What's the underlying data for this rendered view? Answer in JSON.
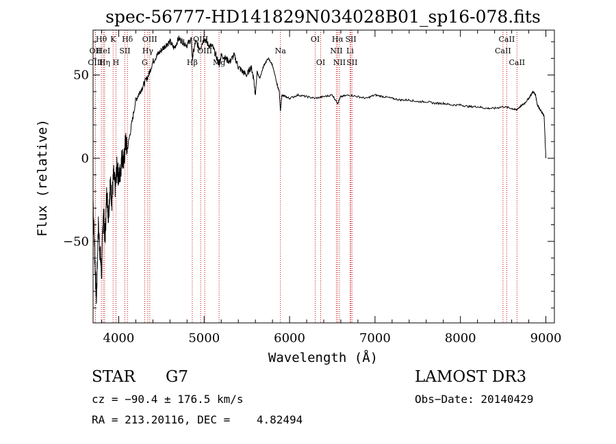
{
  "chart_data": {
    "type": "line",
    "title": "spec-56777-HD141829N034028B01_sp16-078.fits",
    "xlabel": "Wavelength (Å)",
    "ylabel": "Flux (relative)",
    "xlim": [
      3700,
      9100
    ],
    "ylim": [
      -99,
      77
    ],
    "xticks": [
      4000,
      5000,
      6000,
      7000,
      8000,
      9000
    ],
    "yticks": [
      -50,
      0,
      50
    ],
    "spectrum": {
      "name": "flux",
      "x": [
        3700,
        3720,
        3740,
        3760,
        3780,
        3800,
        3820,
        3840,
        3860,
        3880,
        3900,
        3920,
        3940,
        3960,
        3980,
        4000,
        4020,
        4040,
        4060,
        4080,
        4100,
        4150,
        4200,
        4250,
        4300,
        4350,
        4400,
        4450,
        4500,
        4550,
        4600,
        4650,
        4700,
        4750,
        4800,
        4850,
        4861,
        4900,
        4950,
        5000,
        5050,
        5100,
        5150,
        5175,
        5200,
        5250,
        5300,
        5350,
        5400,
        5450,
        5500,
        5550,
        5580,
        5600,
        5620,
        5650,
        5700,
        5750,
        5800,
        5850,
        5880,
        5893,
        5910,
        5950,
        6000,
        6100,
        6200,
        6300,
        6400,
        6500,
        6563,
        6600,
        6700,
        6800,
        6900,
        7000,
        7100,
        7200,
        7300,
        7400,
        7500,
        7600,
        7700,
        7800,
        7900,
        8000,
        8100,
        8200,
        8300,
        8400,
        8500,
        8600,
        8650,
        8700,
        8750,
        8800,
        8850,
        8880,
        8900,
        8950,
        8980,
        9000
      ],
      "y": [
        -25,
        -60,
        -85,
        -40,
        -55,
        -70,
        -30,
        -50,
        -20,
        -35,
        -15,
        -25,
        -10,
        -18,
        -5,
        -12,
        -8,
        2,
        -3,
        10,
        5,
        20,
        35,
        40,
        45,
        50,
        58,
        62,
        65,
        68,
        70,
        66,
        72,
        70,
        68,
        72,
        60,
        70,
        66,
        72,
        68,
        67,
        60,
        56,
        62,
        60,
        58,
        62,
        55,
        52,
        50,
        55,
        48,
        38,
        52,
        48,
        56,
        60,
        56,
        45,
        40,
        28,
        38,
        37,
        36,
        38,
        37,
        36,
        37,
        38,
        33,
        37,
        38,
        37,
        36,
        38,
        37,
        36,
        35,
        35,
        34,
        34,
        33,
        33,
        32,
        32,
        31,
        31,
        30,
        30,
        31,
        30,
        29,
        31,
        33,
        36,
        40,
        38,
        32,
        28,
        25,
        0
      ]
    },
    "lines": [
      {
        "label": "Hθ",
        "x": 3797,
        "row": 1
      },
      {
        "label": "OII",
        "x": 3727,
        "row": 2
      },
      {
        "label": "OIII",
        "x": 3727,
        "row": 3
      },
      {
        "label": "HeI",
        "x": 3820,
        "row": 2
      },
      {
        "label": "Hη",
        "x": 3835,
        "row": 3
      },
      {
        "label": "K",
        "x": 3934,
        "row": 1
      },
      {
        "label": "H",
        "x": 3968,
        "row": 3
      },
      {
        "label": "Hδ",
        "x": 4102,
        "row": 1
      },
      {
        "label": "SII",
        "x": 4072,
        "row": 2
      },
      {
        "label": "OIII",
        "x": 4363,
        "row": 1
      },
      {
        "label": "Hγ",
        "x": 4340,
        "row": 2
      },
      {
        "label": "G",
        "x": 4304,
        "row": 3
      },
      {
        "label": "OIII",
        "x": 4959,
        "row": 1
      },
      {
        "label": "OIII",
        "x": 5007,
        "row": 2
      },
      {
        "label": "Hβ",
        "x": 4861,
        "row": 3
      },
      {
        "label": "Mg",
        "x": 5175,
        "row": 3
      },
      {
        "label": "Na",
        "x": 5893,
        "row": 2
      },
      {
        "label": "OI",
        "x": 6300,
        "row": 1
      },
      {
        "label": "OI",
        "x": 6364,
        "row": 3
      },
      {
        "label": "Hα",
        "x": 6563,
        "row": 1
      },
      {
        "label": "NII",
        "x": 6548,
        "row": 2
      },
      {
        "label": "NII",
        "x": 6584,
        "row": 3
      },
      {
        "label": "SII",
        "x": 6717,
        "row": 1
      },
      {
        "label": "Li",
        "x": 6708,
        "row": 2
      },
      {
        "label": "SII",
        "x": 6731,
        "row": 3
      },
      {
        "label": "CaII",
        "x": 8542,
        "row": 1
      },
      {
        "label": "CaII",
        "x": 8498,
        "row": 2
      },
      {
        "label": "CaII",
        "x": 8662,
        "row": 3
      }
    ]
  },
  "info": {
    "object_class": "STAR",
    "subclass": "G7",
    "survey": "LAMOST DR3",
    "cz": "cz = −90.4 ± 176.5 km/s",
    "obs_date": "Obs−Date: 20140429",
    "coords": "RA = 213.20116, DEC =    4.82494"
  }
}
